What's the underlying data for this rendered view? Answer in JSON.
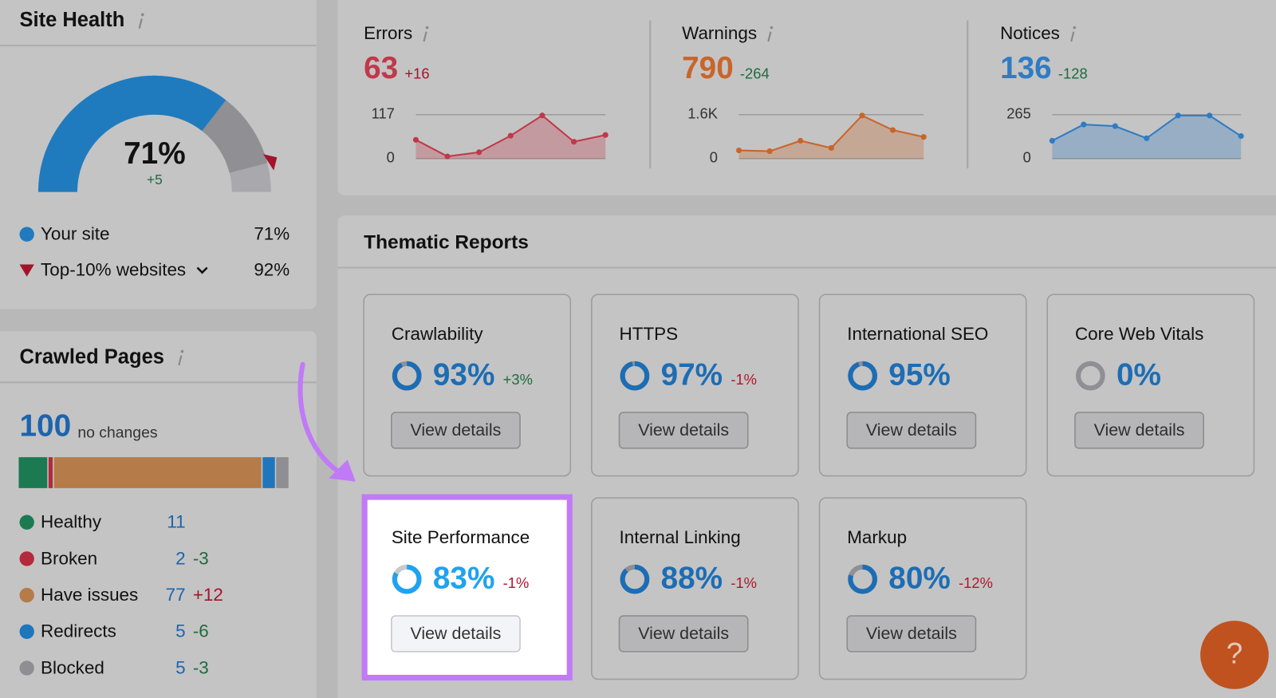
{
  "site_health": {
    "title": "Site Health",
    "score": "71%",
    "change": "+5",
    "your_site": {
      "label": "Your site",
      "value": {
        "value": 71,
        "label": "71%"
      }
    },
    "top10": {
      "label": "Top-10% websites",
      "value": {
        "value": 92,
        "label": "92%"
      }
    }
  },
  "issues": [
    {
      "label": "Errors",
      "value": 63,
      "change": "+16",
      "color": "#c0394a",
      "ylim": [
        0,
        117
      ],
      "yticks": [
        0,
        117
      ],
      "values": [
        50,
        6,
        17,
        61,
        115,
        45,
        63
      ]
    },
    {
      "label": "Warnings",
      "value": 790,
      "change": "-264",
      "color": "#c8652a",
      "ylim": [
        0,
        1600
      ],
      "yticks": [
        0,
        {
          "value": 1600,
          "label": "1.6K"
        }
      ],
      "values": [
        300,
        270,
        650,
        390,
        1570,
        1040,
        790
      ]
    },
    {
      "label": "Notices",
      "value": 136,
      "change": "-128",
      "color": "#2f7cc4",
      "ylim": [
        0,
        265
      ],
      "yticks": [
        0,
        265
      ],
      "values": [
        108,
        206,
        196,
        123,
        260,
        260,
        136
      ]
    }
  ],
  "crawled_pages": {
    "title": "Crawled Pages",
    "total": 100,
    "total_note": "no changes",
    "rows": [
      {
        "label": "Healthy",
        "value": 11,
        "color": "#1b7a52"
      },
      {
        "label": "Broken",
        "value": 2,
        "change": "-3",
        "color": "#b4293b"
      },
      {
        "label": "Have issues",
        "value": 77,
        "change": "+12",
        "color": "#b57b48"
      },
      {
        "label": "Redirects",
        "value": 5,
        "change": "-6",
        "color": "#1f76bc"
      },
      {
        "label": "Blocked",
        "value": 5,
        "change": "-3",
        "color": "#8e8e93"
      }
    ]
  },
  "thematic_reports": {
    "title": "Thematic Reports",
    "cards": [
      {
        "name": "Crawlability",
        "score": {
          "value": 93,
          "label": "93%"
        },
        "change": "+3%",
        "button": "View details"
      },
      {
        "name": "HTTPS",
        "score": {
          "value": 97,
          "label": "97%"
        },
        "change": "-1%",
        "button": "View details"
      },
      {
        "name": "International SEO",
        "score": {
          "value": 95,
          "label": "95%"
        },
        "button": "View details"
      },
      {
        "name": "Core Web Vitals",
        "score": {
          "value": 0,
          "label": "0%"
        },
        "button": "View details"
      },
      {
        "name": "Site Performance",
        "score": {
          "value": 83,
          "label": "83%"
        },
        "change": "-1%",
        "button": "View details",
        "highlighted": true
      },
      {
        "name": "Internal Linking",
        "score": {
          "value": 88,
          "label": "88%"
        },
        "change": "-1%",
        "button": "View details"
      },
      {
        "name": "Markup",
        "score": {
          "value": 80,
          "label": "80%"
        },
        "change": "-12%",
        "button": "View details"
      }
    ]
  },
  "help_button": "?"
}
